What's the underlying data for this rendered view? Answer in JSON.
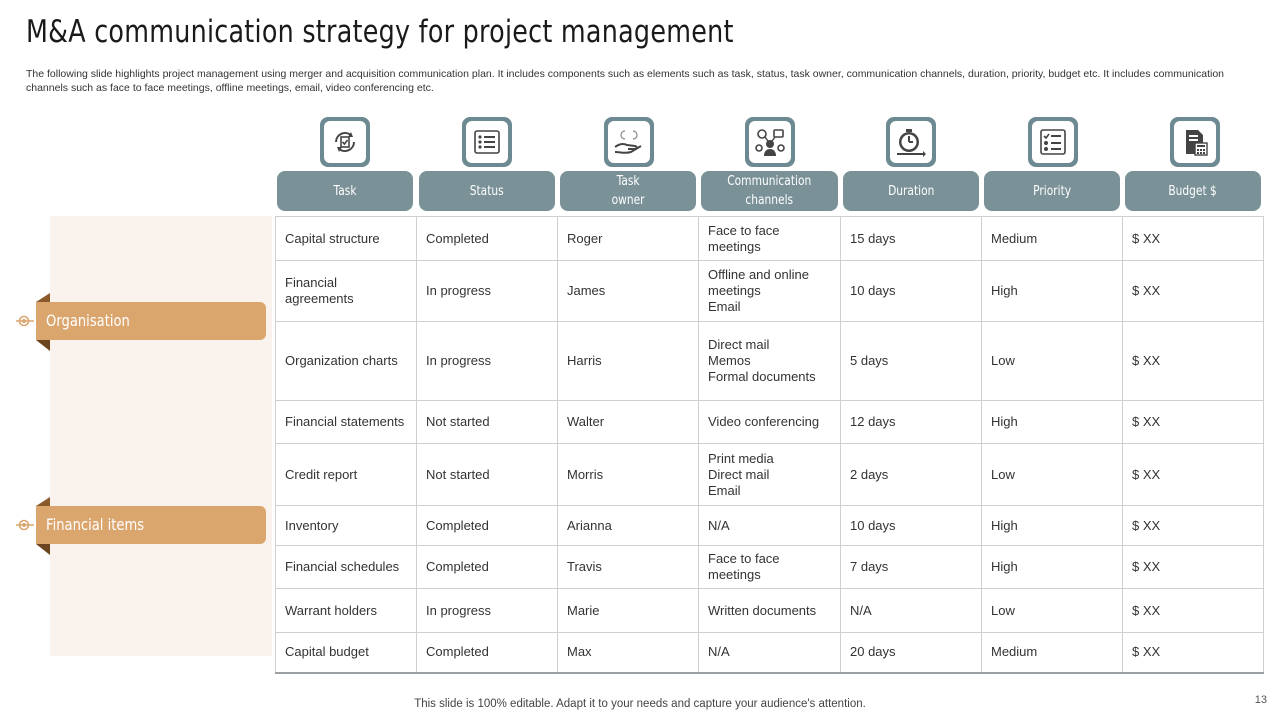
{
  "title": "M&A communication strategy for project management",
  "subtitle": "The following slide highlights project management using merger and acquisition communication plan. It includes components such as elements such as task, status, task owner, communication channels, duration, priority, budget etc. It includes communication channels such as face to face meetings, offline meetings, email, video conferencing etc.",
  "categories": [
    {
      "label": "Organisation"
    },
    {
      "label": "Financial items"
    }
  ],
  "icons": [
    "task-icon",
    "status-checklist-icon",
    "hand-owner-icon",
    "communication-network-icon",
    "stopwatch-icon",
    "priority-list-icon",
    "budget-calculator-icon"
  ],
  "headers": [
    "Task",
    "Status",
    "Task\nowner",
    "Communication\nchannels",
    "Duration",
    "Priority",
    "Budget $"
  ],
  "rows": [
    [
      "Capital structure",
      "Completed",
      "Roger",
      "Face to face\nmeetings",
      "15 days",
      "Medium",
      "$ XX"
    ],
    [
      "Financial\nagreements",
      "In progress",
      "James",
      "Offline and online\nmeetings\nEmail",
      "10 days",
      "High",
      "$ XX"
    ],
    [
      "Organization charts",
      "In progress",
      "Harris",
      "Direct mail\nMemos\nFormal documents",
      "5 days",
      "Low",
      "$ XX"
    ],
    [
      "Financial statements",
      "Not started",
      "Walter",
      "Video conferencing",
      "12 days",
      "High",
      "$ XX"
    ],
    [
      "Credit report",
      "Not started",
      "Morris",
      "Print media\nDirect mail\nEmail",
      "2 days",
      "Low",
      "$ XX"
    ],
    [
      "Inventory",
      "Completed",
      "Arianna",
      "N/A",
      "10 days",
      "High",
      "$ XX"
    ],
    [
      "Financial schedules",
      "Completed",
      "Travis",
      "Face to face\nmeetings",
      "7 days",
      "High",
      "$ XX"
    ],
    [
      "Warrant holders",
      "In progress",
      "Marie",
      "Written documents",
      "N/A",
      "Low",
      "$ XX"
    ],
    [
      "Capital budget",
      "Completed",
      "Max",
      "N/A",
      "20 days",
      "Medium",
      "$ XX"
    ]
  ],
  "footer": "This slide is 100% editable. Adapt it to your needs and capture your audience's attention.",
  "page_number": "13",
  "colors": {
    "header_bg": "#7a9198",
    "accent_orange": "#dba56e",
    "panel_bg": "#faf2ec"
  }
}
